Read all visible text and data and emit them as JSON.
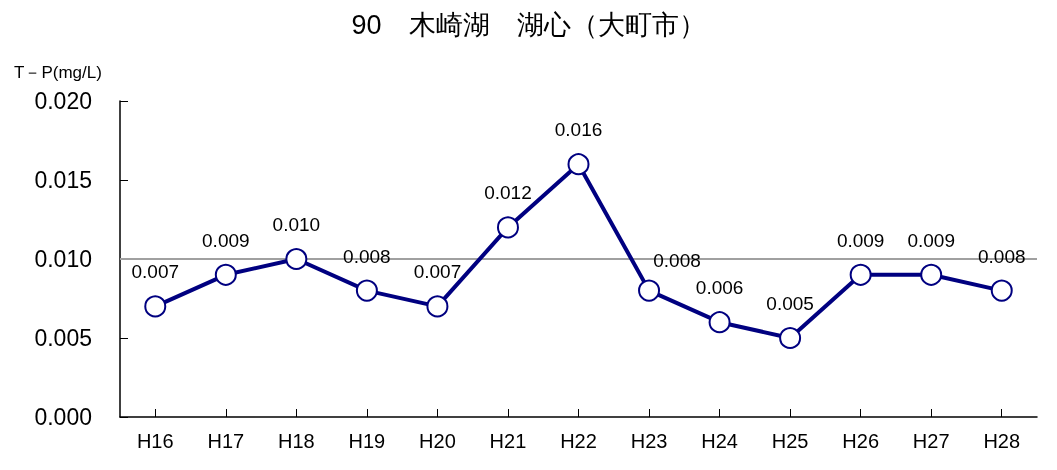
{
  "chart_data": {
    "type": "line",
    "title": "90　木崎湖　湖心（大町市）",
    "ylabel": "T－P(mg/L)",
    "categories": [
      "H16",
      "H17",
      "H18",
      "H19",
      "H20",
      "H21",
      "H22",
      "H23",
      "H24",
      "H25",
      "H26",
      "H27",
      "H28"
    ],
    "series": [
      {
        "color": "#000080",
        "values": [
          0.007,
          0.009,
          0.01,
          0.008,
          0.007,
          0.012,
          0.016,
          0.008,
          0.006,
          0.005,
          0.009,
          0.009,
          0.008
        ],
        "value_labels": [
          "0.007",
          "0.009",
          "0.010",
          "0.008",
          "0.007",
          "0.012",
          "0.016",
          "0.008",
          "0.006",
          "0.005",
          "0.009",
          "0.009",
          "0.008"
        ]
      }
    ],
    "ylim": [
      0,
      0.02
    ],
    "yticks": [
      {
        "value": 0,
        "label": "0.000"
      },
      {
        "value": 0.005,
        "label": "0.005"
      },
      {
        "value": 0.01,
        "label": "0.010"
      },
      {
        "value": 0.015,
        "label": "0.015"
      },
      {
        "value": 0.02,
        "label": "0.020"
      }
    ],
    "ref_lines": [
      {
        "axis": "y",
        "value": 0.01,
        "color": "#a0a0a0"
      }
    ],
    "grid": false,
    "marker": "circle",
    "line_style": "solid"
  }
}
